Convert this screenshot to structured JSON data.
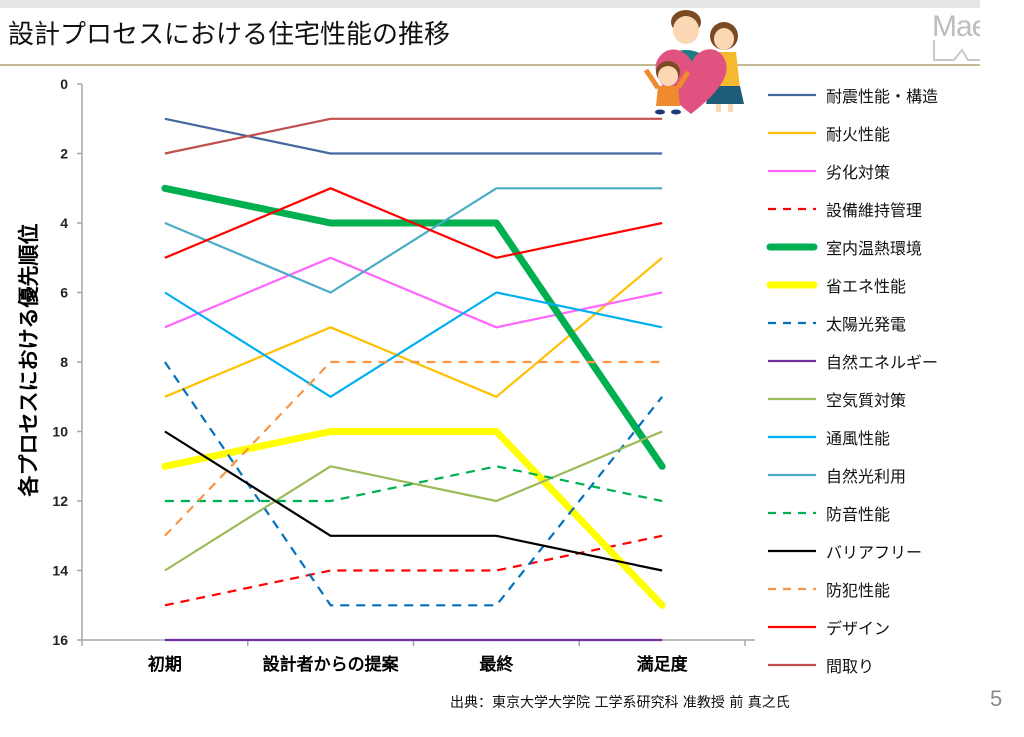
{
  "slide": {
    "title": "設計プロセスにおける住宅性能の推移",
    "logo_text": "Mae",
    "source": "出典：東京大学大学院 工学系研究科 准教授 前 真之氏",
    "page_number": "5"
  },
  "chart_data": {
    "type": "line",
    "title": "設計プロセスにおける住宅性能の推移",
    "xlabel": "",
    "ylabel": "各プロセスにおける優先順位",
    "categories": [
      "初期",
      "設計者からの提案",
      "最終",
      "満足度"
    ],
    "ylim": [
      0,
      16
    ],
    "y_inverted": true,
    "yticks": [
      0,
      2,
      4,
      6,
      8,
      10,
      12,
      14,
      16
    ],
    "grid": false,
    "legend_position": "right",
    "series": [
      {
        "name": "耐震性能・構造",
        "values": [
          1,
          2,
          2,
          2
        ],
        "color": "#44689f",
        "style": "solid",
        "weight": "normal"
      },
      {
        "name": "耐火性能",
        "values": [
          9,
          7,
          9,
          5
        ],
        "color": "#ffc000",
        "style": "solid",
        "weight": "normal"
      },
      {
        "name": "劣化対策",
        "values": [
          7,
          5,
          7,
          6
        ],
        "color": "#ff66ff",
        "style": "solid",
        "weight": "normal"
      },
      {
        "name": "設備維持管理",
        "values": [
          15,
          14,
          14,
          13
        ],
        "color": "#ff0000",
        "style": "dashed",
        "weight": "normal"
      },
      {
        "name": "室内温熱環境",
        "values": [
          3,
          4,
          4,
          11
        ],
        "color": "#00b050",
        "style": "solid",
        "weight": "bold"
      },
      {
        "name": "省エネ性能",
        "values": [
          11,
          10,
          10,
          15
        ],
        "color": "#ffff00",
        "style": "solid",
        "weight": "bold"
      },
      {
        "name": "太陽光発電",
        "values": [
          8,
          15,
          15,
          9
        ],
        "color": "#0070c0",
        "style": "dashed",
        "weight": "normal"
      },
      {
        "name": "自然エネルギー",
        "values": [
          16,
          16,
          16,
          16
        ],
        "color": "#7030a0",
        "style": "solid",
        "weight": "normal"
      },
      {
        "name": "空気質対策",
        "values": [
          14,
          11,
          12,
          10
        ],
        "color": "#9bbb59",
        "style": "solid",
        "weight": "normal"
      },
      {
        "name": "通風性能",
        "values": [
          6,
          9,
          6,
          7
        ],
        "color": "#00b0f0",
        "style": "solid",
        "weight": "normal"
      },
      {
        "name": "自然光利用",
        "values": [
          4,
          6,
          3,
          3
        ],
        "color": "#4bacc6",
        "style": "solid",
        "weight": "normal"
      },
      {
        "name": "防音性能",
        "values": [
          12,
          12,
          11,
          12
        ],
        "color": "#00b050",
        "style": "dashed",
        "weight": "normal"
      },
      {
        "name": "バリアフリー",
        "values": [
          10,
          13,
          13,
          14
        ],
        "color": "#000000",
        "style": "solid",
        "weight": "normal"
      },
      {
        "name": "防犯性能",
        "values": [
          13,
          8,
          8,
          8
        ],
        "color": "#f79646",
        "style": "dashed",
        "weight": "normal"
      },
      {
        "name": "デザイン",
        "values": [
          5,
          3,
          5,
          4
        ],
        "color": "#ff0000",
        "style": "solid",
        "weight": "normal"
      },
      {
        "name": "間取り",
        "values": [
          2,
          1,
          1,
          1
        ],
        "color": "#c0504d",
        "style": "solid",
        "weight": "normal"
      }
    ]
  }
}
